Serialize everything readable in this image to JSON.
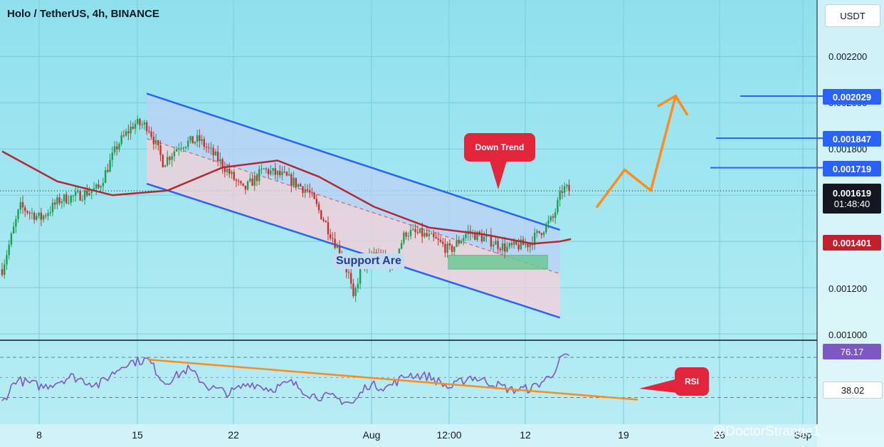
{
  "header": {
    "title": "Holo / TetherUS, 4h, BINANCE",
    "currency_button": "USDT"
  },
  "price_axis": {
    "ticks": [
      "0.002200",
      "0.002000",
      "0.001800",
      "0.001200",
      "0.001000"
    ]
  },
  "price_tags": {
    "target_3": "0.002029",
    "target_2": "0.001847",
    "target_1": "0.001719",
    "last_price": "0.001619",
    "countdown": "01:48:40",
    "ma_value": "0.001401"
  },
  "rsi_axis": {
    "upper": "76.17",
    "lower": "38.02"
  },
  "time_axis": {
    "labels": [
      "8",
      "15",
      "22",
      "Aug",
      "12:00",
      "12",
      "19",
      "26",
      "Sep"
    ]
  },
  "annotations": {
    "down_trend": "Down Trend",
    "support": "Support Are",
    "rsi": "RSI"
  },
  "watermark": "@DoctorStrange1",
  "colors": {
    "channel_line": "#2962ff",
    "ma": "#b22833",
    "projection": "#ff8c1a",
    "rsi_line": "#7e57c2",
    "candle_up": "#1e9e4f",
    "candle_down": "#d12d2d",
    "callout": "#e3253c",
    "support_box": "#66c990"
  },
  "chart_data": {
    "type": "candlestick",
    "pair": "Holo / TetherUS",
    "interval": "4h",
    "exchange": "BINANCE",
    "price_range": [
      0.00098,
      0.00236
    ],
    "key_levels": [
      0.002029,
      0.001847,
      0.001719,
      0.001619,
      0.001401
    ],
    "close_trajectory": [
      {
        "day": 0.0,
        "close": 0.00128
      },
      {
        "day": 1.3,
        "close": 0.00155
      },
      {
        "day": 2.8,
        "close": 0.0015
      },
      {
        "day": 4.2,
        "close": 0.00158
      },
      {
        "day": 5.6,
        "close": 0.0016
      },
      {
        "day": 7.0,
        "close": 0.00163
      },
      {
        "day": 8.4,
        "close": 0.00182
      },
      {
        "day": 9.6,
        "close": 0.00191
      },
      {
        "day": 10.6,
        "close": 0.0019
      },
      {
        "day": 11.7,
        "close": 0.00174
      },
      {
        "day": 12.9,
        "close": 0.00182
      },
      {
        "day": 14.3,
        "close": 0.00184
      },
      {
        "day": 15.9,
        "close": 0.00174
      },
      {
        "day": 17.5,
        "close": 0.00162
      },
      {
        "day": 19.0,
        "close": 0.00171
      },
      {
        "day": 20.5,
        "close": 0.00168
      },
      {
        "day": 22.2,
        "close": 0.00162
      },
      {
        "day": 23.3,
        "close": 0.0015
      },
      {
        "day": 24.3,
        "close": 0.00138
      },
      {
        "day": 25.2,
        "close": 0.00125
      },
      {
        "day": 25.5,
        "close": 0.00114
      },
      {
        "day": 26.0,
        "close": 0.00128
      },
      {
        "day": 27.0,
        "close": 0.00135
      },
      {
        "day": 28.3,
        "close": 0.0013
      },
      {
        "day": 29.3,
        "close": 0.00144
      },
      {
        "day": 30.5,
        "close": 0.00143
      },
      {
        "day": 31.6,
        "close": 0.0014
      },
      {
        "day": 32.5,
        "close": 0.00136
      },
      {
        "day": 33.8,
        "close": 0.00144
      },
      {
        "day": 35.2,
        "close": 0.00141
      },
      {
        "day": 36.6,
        "close": 0.00137
      },
      {
        "day": 38.2,
        "close": 0.00139
      },
      {
        "day": 39.2,
        "close": 0.00145
      },
      {
        "day": 40.0,
        "close": 0.0015
      },
      {
        "day": 40.7,
        "close": 0.00163
      },
      {
        "day": 41.3,
        "close": 0.00162
      }
    ],
    "rsi": {
      "levels": [
        76.17,
        38.02
      ],
      "series": [
        {
          "day": 0.0,
          "rsi": 33
        },
        {
          "day": 1.0,
          "rsi": 55
        },
        {
          "day": 3.0,
          "rsi": 48
        },
        {
          "day": 5.0,
          "rsi": 58
        },
        {
          "day": 7.0,
          "rsi": 50
        },
        {
          "day": 9.0,
          "rsi": 71
        },
        {
          "day": 10.6,
          "rsi": 74
        },
        {
          "day": 11.8,
          "rsi": 52
        },
        {
          "day": 13.5,
          "rsi": 65
        },
        {
          "day": 15.0,
          "rsi": 48
        },
        {
          "day": 16.5,
          "rsi": 42
        },
        {
          "day": 18.0,
          "rsi": 52
        },
        {
          "day": 19.5,
          "rsi": 46
        },
        {
          "day": 21.0,
          "rsi": 52
        },
        {
          "day": 22.5,
          "rsi": 40
        },
        {
          "day": 24.0,
          "rsi": 38
        },
        {
          "day": 25.5,
          "rsi": 32
        },
        {
          "day": 26.5,
          "rsi": 50
        },
        {
          "day": 28.0,
          "rsi": 48
        },
        {
          "day": 29.5,
          "rsi": 60
        },
        {
          "day": 31.0,
          "rsi": 58
        },
        {
          "day": 32.5,
          "rsi": 47
        },
        {
          "day": 34.0,
          "rsi": 58
        },
        {
          "day": 35.5,
          "rsi": 52
        },
        {
          "day": 37.0,
          "rsi": 45
        },
        {
          "day": 38.5,
          "rsi": 47
        },
        {
          "day": 39.8,
          "rsi": 58
        },
        {
          "day": 40.7,
          "rsi": 77
        },
        {
          "day": 41.3,
          "rsi": 74
        }
      ]
    },
    "moving_average": [
      {
        "day": 0.0,
        "value": 0.00179
      },
      {
        "day": 4.0,
        "value": 0.00166
      },
      {
        "day": 8.0,
        "value": 0.0016
      },
      {
        "day": 12.0,
        "value": 0.00162
      },
      {
        "day": 16.0,
        "value": 0.00172
      },
      {
        "day": 20.0,
        "value": 0.00175
      },
      {
        "day": 23.0,
        "value": 0.00168
      },
      {
        "day": 27.0,
        "value": 0.00155
      },
      {
        "day": 31.0,
        "value": 0.00146
      },
      {
        "day": 35.0,
        "value": 0.00143
      },
      {
        "day": 38.5,
        "value": 0.00139
      },
      {
        "day": 40.5,
        "value": 0.0014
      },
      {
        "day": 41.3,
        "value": 0.00141
      }
    ],
    "descending_channel": {
      "upper": [
        {
          "day": 10.5,
          "value": 0.00204
        },
        {
          "day": 40.5,
          "value": 0.00145
        }
      ],
      "lower": [
        {
          "day": 10.5,
          "value": 0.00165
        },
        {
          "day": 40.5,
          "value": 0.00107
        }
      ]
    },
    "support_zone": {
      "day_start": 32.4,
      "day_end": 39.6,
      "low": 0.00128,
      "high": 0.00134
    },
    "projection_path": [
      {
        "day": 43.2,
        "value": 0.00155
      },
      {
        "day": 45.2,
        "value": 0.00171
      },
      {
        "day": 47.1,
        "value": 0.00162
      },
      {
        "day": 48.9,
        "value": 0.00203
      }
    ]
  }
}
